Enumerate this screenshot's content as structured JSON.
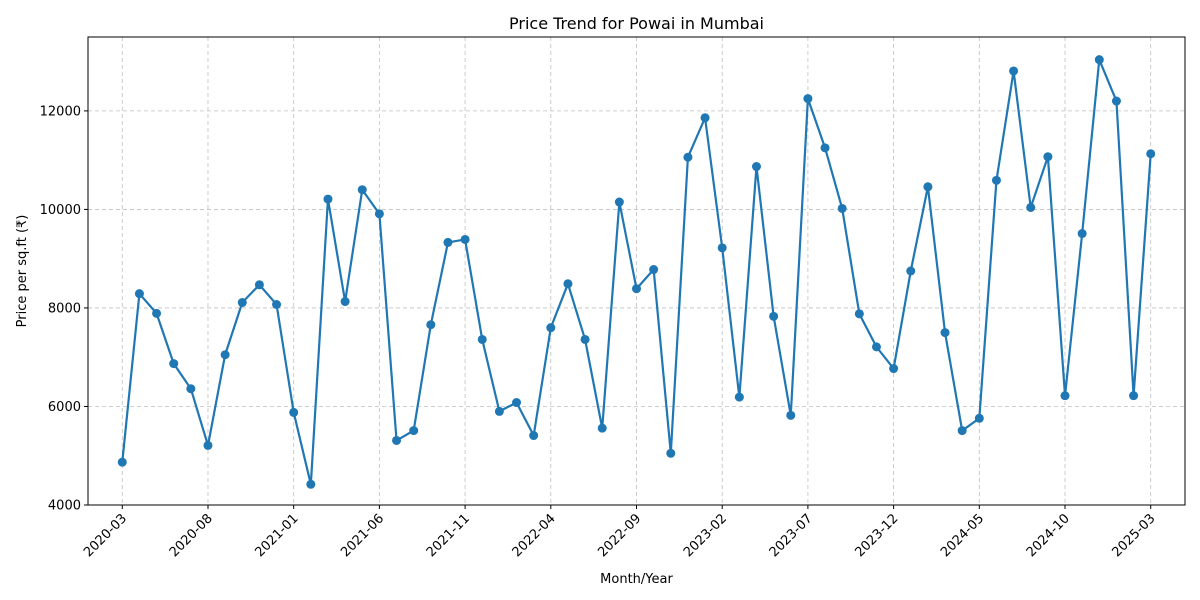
{
  "chart_data": {
    "type": "line",
    "title": "Price Trend for Powai in Mumbai",
    "xlabel": "Month/Year",
    "ylabel": "Price per sq.ft (₹)",
    "x_ticks": [
      "2020-03",
      "2020-08",
      "2021-01",
      "2021-06",
      "2021-11",
      "2022-04",
      "2022-09",
      "2023-02",
      "2023-07",
      "2023-12",
      "2024-05",
      "2024-10",
      "2025-03"
    ],
    "y_ticks": [
      4000,
      6000,
      8000,
      10000,
      12000
    ],
    "ylim": [
      4000,
      13500
    ],
    "xlim": [
      "2020-01",
      "2025-05"
    ],
    "grid": true,
    "color": "#1f77b4",
    "series": [
      {
        "x": [
          "2020-03",
          "2020-04",
          "2020-05",
          "2020-06",
          "2020-07",
          "2020-08",
          "2020-09",
          "2020-10",
          "2020-11",
          "2020-12",
          "2021-01",
          "2021-02",
          "2021-03",
          "2021-04",
          "2021-05",
          "2021-06",
          "2021-07",
          "2021-08",
          "2021-09",
          "2021-10",
          "2021-11",
          "2021-12",
          "2022-01",
          "2022-02",
          "2022-03",
          "2022-04",
          "2022-05",
          "2022-06",
          "2022-07",
          "2022-08",
          "2022-09",
          "2022-10",
          "2022-11",
          "2022-12",
          "2023-01",
          "2023-02",
          "2023-03",
          "2023-04",
          "2023-05",
          "2023-06",
          "2023-07",
          "2023-08",
          "2023-09",
          "2023-10",
          "2023-11",
          "2023-12",
          "2024-01",
          "2024-02",
          "2024-03",
          "2024-04",
          "2024-05",
          "2024-06",
          "2024-07",
          "2024-08",
          "2024-09",
          "2024-10",
          "2024-11",
          "2024-12",
          "2025-01",
          "2025-02",
          "2025-03"
        ],
        "values": [
          4870,
          8290,
          7890,
          6870,
          6360,
          5210,
          7050,
          8110,
          8470,
          8070,
          5880,
          4420,
          10210,
          8130,
          10400,
          9910,
          5310,
          5510,
          7660,
          9330,
          9390,
          7360,
          5900,
          6080,
          5410,
          7600,
          8490,
          7360,
          5560,
          10150,
          8390,
          8780,
          5050,
          11060,
          11860,
          9220,
          6190,
          10870,
          7830,
          5820,
          12250,
          11250,
          10020,
          7880,
          7210,
          6770,
          8750,
          10460,
          7500,
          5510,
          5760,
          10590,
          12810,
          10040,
          11070,
          6220,
          9510,
          13040,
          12200,
          6220,
          11130
        ]
      }
    ]
  }
}
